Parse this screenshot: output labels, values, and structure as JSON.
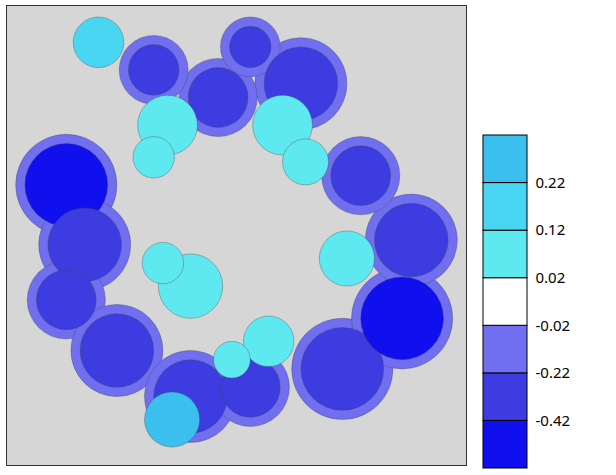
{
  "chart_data": {
    "type": "map",
    "tick_labels": false,
    "xlim": [
      0,
      100
    ],
    "ylim": [
      0,
      100
    ],
    "blobs": {
      "x": [
        13,
        17,
        13,
        24,
        40,
        53,
        73,
        86,
        88,
        77,
        64,
        46,
        32,
        53,
        13,
        17,
        13,
        24,
        40,
        53,
        73,
        86,
        88,
        77,
        64,
        46,
        32,
        53,
        20,
        35,
        32,
        60,
        65,
        74,
        40,
        34,
        57,
        49,
        36
      ],
      "y": [
        39,
        52,
        64,
        75,
        85,
        83,
        79,
        68,
        51,
        37,
        17,
        20,
        14,
        9,
        39,
        52,
        64,
        75,
        85,
        83,
        79,
        68,
        51,
        37,
        17,
        20,
        14,
        9,
        8,
        26,
        33,
        26,
        34,
        55,
        61,
        56,
        73,
        77,
        90
      ],
      "r": [
        11,
        10,
        8.5,
        10,
        10,
        8.5,
        11,
        11,
        10,
        8.5,
        10,
        8.5,
        7.5,
        6.5,
        9,
        8,
        6.5,
        8,
        8,
        6.5,
        9,
        9,
        8,
        6.5,
        8,
        6.5,
        5.5,
        4.5,
        5.5,
        6.5,
        4.5,
        6.5,
        5,
        6,
        7,
        4.5,
        5.5,
        4,
        6
      ],
      "values": [
        -0.12,
        -0.12,
        -0.12,
        -0.12,
        -0.12,
        -0.12,
        -0.12,
        -0.12,
        -0.12,
        -0.12,
        -0.12,
        -0.12,
        -0.12,
        -0.12,
        -0.5,
        -0.32,
        -0.32,
        -0.32,
        -0.32,
        -0.32,
        -0.32,
        -0.5,
        -0.32,
        -0.32,
        -0.32,
        -0.32,
        -0.32,
        -0.32,
        0.17,
        0.07,
        0.07,
        0.07,
        0.07,
        0.07,
        0.07,
        0.07,
        0.07,
        0.07,
        0.27
      ]
    },
    "colorbar": {
      "ticks": [
        -0.42,
        -0.22,
        -0.02,
        0.02,
        0.12,
        0.22
      ],
      "colors": [
        "#1010ee",
        "#3c3ce0",
        "#6f6ff0",
        "#ffffff",
        "#5ee8f0",
        "#48d6f2",
        "#3bbfee"
      ]
    }
  }
}
